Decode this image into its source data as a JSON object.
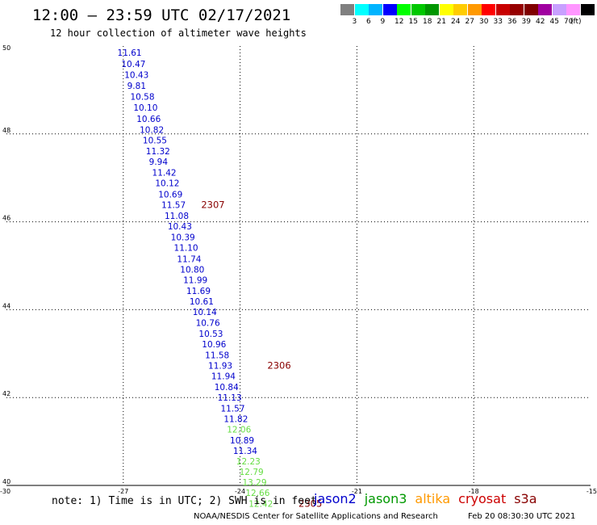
{
  "header": {
    "title": "12:00 – 23:59 UTC 02/17/2021",
    "subtitle": "12 hour collection of altimeter wave heights"
  },
  "color_scale": {
    "unit": "(ft)",
    "bins": [
      {
        "color": "#808080",
        "label": ""
      },
      {
        "color": "#00ffff",
        "label": "3"
      },
      {
        "color": "#00b4ff",
        "label": "6"
      },
      {
        "color": "#0000ff",
        "label": "9"
      },
      {
        "color": "#00ff00",
        "label": "12"
      },
      {
        "color": "#00c800",
        "label": "15"
      },
      {
        "color": "#009600",
        "label": "18"
      },
      {
        "color": "#ffff00",
        "label": "21"
      },
      {
        "color": "#ffcc00",
        "label": "24"
      },
      {
        "color": "#ff9900",
        "label": "27"
      },
      {
        "color": "#ff0000",
        "label": "30"
      },
      {
        "color": "#c80000",
        "label": "33"
      },
      {
        "color": "#960000",
        "label": "36"
      },
      {
        "color": "#800000",
        "label": "39"
      },
      {
        "color": "#a000a0",
        "label": "42"
      },
      {
        "color": "#c8a0ff",
        "label": "45"
      },
      {
        "color": "#ff96ff",
        "label": "70"
      },
      {
        "color": "#000000",
        "label": ""
      }
    ]
  },
  "chart_data": {
    "type": "scatter",
    "title": "12:00 – 23:59 UTC 02/17/2021",
    "subtitle": "12 hour collection of altimeter wave heights",
    "x_axis": {
      "range": [
        -30,
        -15
      ],
      "ticks": [
        "-30",
        "-27",
        "-24",
        "-21",
        "-18",
        "-15"
      ]
    },
    "y_axis": {
      "range": [
        40,
        50
      ],
      "ticks": [
        "40",
        "42",
        "44",
        "46",
        "48",
        "50"
      ]
    },
    "grid": true,
    "points": [
      {
        "lon": -27.15,
        "lat": 49.85,
        "value": "11.61",
        "mission": "jason2"
      },
      {
        "lon": -27.05,
        "lat": 49.6,
        "value": "10.47",
        "mission": "jason2"
      },
      {
        "lon": -26.97,
        "lat": 49.35,
        "value": "10.43",
        "mission": "jason2"
      },
      {
        "lon": -26.9,
        "lat": 49.1,
        "value": "9.81",
        "mission": "jason2"
      },
      {
        "lon": -26.82,
        "lat": 48.85,
        "value": "10.58",
        "mission": "jason2"
      },
      {
        "lon": -26.74,
        "lat": 48.6,
        "value": "10.10",
        "mission": "jason2"
      },
      {
        "lon": -26.66,
        "lat": 48.35,
        "value": "10.66",
        "mission": "jason2"
      },
      {
        "lon": -26.58,
        "lat": 48.1,
        "value": "10.82",
        "mission": "jason2"
      },
      {
        "lon": -26.5,
        "lat": 47.86,
        "value": "10.55",
        "mission": "jason2"
      },
      {
        "lon": -26.42,
        "lat": 47.61,
        "value": "11.32",
        "mission": "jason2"
      },
      {
        "lon": -26.34,
        "lat": 47.37,
        "value": "9.94",
        "mission": "jason2"
      },
      {
        "lon": -26.26,
        "lat": 47.12,
        "value": "11.42",
        "mission": "jason2"
      },
      {
        "lon": -26.18,
        "lat": 46.88,
        "value": "10.12",
        "mission": "jason2"
      },
      {
        "lon": -26.1,
        "lat": 46.63,
        "value": "10.69",
        "mission": "jason2"
      },
      {
        "lon": -26.02,
        "lat": 46.39,
        "value": "11.57",
        "mission": "jason2"
      },
      {
        "lon": -25.94,
        "lat": 46.14,
        "value": "11.08",
        "mission": "jason2"
      },
      {
        "lon": -25.86,
        "lat": 45.9,
        "value": "10.43",
        "mission": "jason2"
      },
      {
        "lon": -25.78,
        "lat": 45.65,
        "value": "10.39",
        "mission": "jason2"
      },
      {
        "lon": -25.7,
        "lat": 45.41,
        "value": "11.10",
        "mission": "jason2"
      },
      {
        "lon": -25.62,
        "lat": 45.16,
        "value": "11.74",
        "mission": "jason2"
      },
      {
        "lon": -25.54,
        "lat": 44.92,
        "value": "10.80",
        "mission": "jason2"
      },
      {
        "lon": -25.46,
        "lat": 44.68,
        "value": "11.99",
        "mission": "jason2"
      },
      {
        "lon": -25.38,
        "lat": 44.43,
        "value": "11.69",
        "mission": "jason2"
      },
      {
        "lon": -25.3,
        "lat": 44.19,
        "value": "10.61",
        "mission": "jason2"
      },
      {
        "lon": -25.22,
        "lat": 43.95,
        "value": "10.14",
        "mission": "jason2"
      },
      {
        "lon": -25.14,
        "lat": 43.7,
        "value": "10.76",
        "mission": "jason2"
      },
      {
        "lon": -25.06,
        "lat": 43.46,
        "value": "10.53",
        "mission": "jason2"
      },
      {
        "lon": -24.98,
        "lat": 43.22,
        "value": "10.96",
        "mission": "jason2"
      },
      {
        "lon": -24.9,
        "lat": 42.97,
        "value": "11.58",
        "mission": "jason2"
      },
      {
        "lon": -24.82,
        "lat": 42.73,
        "value": "11.93",
        "mission": "jason2"
      },
      {
        "lon": -24.74,
        "lat": 42.49,
        "value": "11.94",
        "mission": "jason2"
      },
      {
        "lon": -24.66,
        "lat": 42.24,
        "value": "10.84",
        "mission": "jason2"
      },
      {
        "lon": -24.58,
        "lat": 42.0,
        "value": "11.13",
        "mission": "jason2"
      },
      {
        "lon": -24.5,
        "lat": 41.76,
        "value": "11.57",
        "mission": "jason2"
      },
      {
        "lon": -24.42,
        "lat": 41.52,
        "value": "11.82",
        "mission": "jason2"
      },
      {
        "lon": -24.34,
        "lat": 41.28,
        "value": "12.06",
        "mission": "jason3"
      },
      {
        "lon": -24.26,
        "lat": 41.03,
        "value": "10.89",
        "mission": "jason2"
      },
      {
        "lon": -24.18,
        "lat": 40.79,
        "value": "11.34",
        "mission": "jason2"
      },
      {
        "lon": -24.1,
        "lat": 40.55,
        "value": "12.23",
        "mission": "jason3"
      },
      {
        "lon": -24.02,
        "lat": 40.31,
        "value": "12.79",
        "mission": "jason3"
      },
      {
        "lon": -23.94,
        "lat": 40.07,
        "value": "13.29",
        "mission": "jason3"
      },
      {
        "lon": -23.86,
        "lat": 39.83,
        "value": "12.66",
        "mission": "jason3"
      },
      {
        "lon": -23.78,
        "lat": 39.59,
        "value": "12.42",
        "mission": "jason3"
      }
    ],
    "time_labels": [
      {
        "lon": -25.0,
        "lat": 46.39,
        "text": "2307"
      },
      {
        "lon": -23.3,
        "lat": 42.73,
        "text": "2306"
      },
      {
        "lon": -22.5,
        "lat": 39.59,
        "text": "2305"
      }
    ]
  },
  "footer": {
    "note": "note: 1) Time is in UTC; 2) SWH is in feet",
    "missions": [
      {
        "name": "jason2",
        "color": "#0000cc"
      },
      {
        "name": "jason3",
        "color": "#009900"
      },
      {
        "name": "altika",
        "color": "#ff9900"
      },
      {
        "name": "cryosat",
        "color": "#cc0000"
      },
      {
        "name": "s3a",
        "color": "#880000"
      }
    ],
    "credit": "NOAA/NESDIS Center for Satellite Applications and Research",
    "timestamp": "Feb 20 08:30:30 UTC 2021"
  },
  "colors": {
    "jason2": "#0000cc",
    "jason3": "#66dd44",
    "time_label": "#880000",
    "grid": "#000000"
  }
}
